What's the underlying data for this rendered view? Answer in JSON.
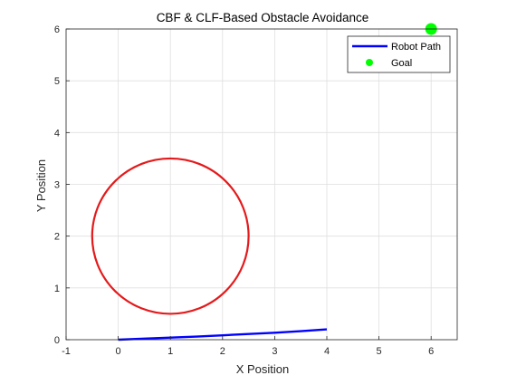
{
  "chart_data": {
    "type": "line",
    "title": "CBF & CLF-Based Obstacle Avoidance",
    "xlabel": "X Position",
    "ylabel": "Y Position",
    "xlim": [
      -1,
      6.5
    ],
    "ylim": [
      0,
      6
    ],
    "xticks": [
      "-1",
      "0",
      "1",
      "2",
      "3",
      "4",
      "5",
      "6"
    ],
    "yticks": [
      "0",
      "1",
      "2",
      "3",
      "4",
      "5",
      "6"
    ],
    "grid": true,
    "legend_position": "top-right",
    "series": [
      {
        "name": "Robot Path",
        "kind": "line",
        "color": "#0000ff",
        "x": [
          0,
          0.5,
          1,
          1.5,
          2,
          2.5,
          3,
          3.5,
          4
        ],
        "y": [
          0,
          0.02,
          0.04,
          0.06,
          0.085,
          0.11,
          0.135,
          0.165,
          0.2
        ]
      },
      {
        "name": "Goal",
        "kind": "marker",
        "color": "#00ff00",
        "x": [
          6
        ],
        "y": [
          6
        ]
      }
    ],
    "obstacle": {
      "kind": "circle",
      "center": [
        1,
        2
      ],
      "radius": 1.5,
      "color": "#e41a1c"
    }
  }
}
